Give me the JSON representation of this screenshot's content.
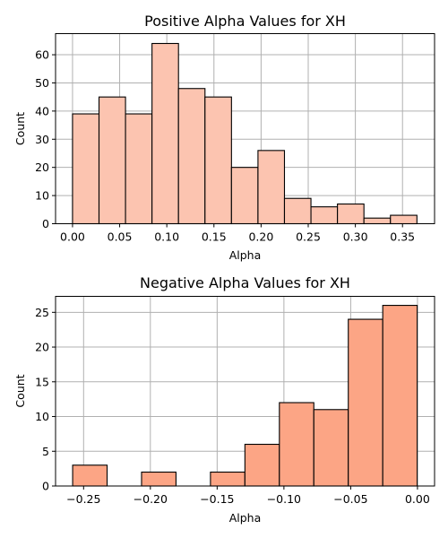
{
  "chart_data": [
    {
      "type": "bar",
      "title": "Positive Alpha Values for XH",
      "xlabel": "Alpha",
      "ylabel": "Count",
      "xlim": [
        -0.018,
        0.384
      ],
      "ylim": [
        0,
        67.5
      ],
      "xticks": [
        0.0,
        0.05,
        0.1,
        0.15,
        0.2,
        0.25,
        0.3,
        0.35
      ],
      "xtick_labels": [
        "0.00",
        "0.05",
        "0.10",
        "0.15",
        "0.20",
        "0.25",
        "0.30",
        "0.35"
      ],
      "yticks": [
        0,
        10,
        20,
        30,
        40,
        50,
        60
      ],
      "ytick_labels": [
        "0",
        "10",
        "20",
        "30",
        "40",
        "50",
        "60"
      ],
      "grid": true,
      "bar_color": "#fcc4b0",
      "edge_color": "#000000",
      "bins": [
        {
          "start": 0.0,
          "end": 0.0281,
          "count": 39
        },
        {
          "start": 0.0281,
          "end": 0.0562,
          "count": 45
        },
        {
          "start": 0.0562,
          "end": 0.0843,
          "count": 39
        },
        {
          "start": 0.0843,
          "end": 0.1124,
          "count": 64
        },
        {
          "start": 0.1124,
          "end": 0.1405,
          "count": 48
        },
        {
          "start": 0.1405,
          "end": 0.1686,
          "count": 45
        },
        {
          "start": 0.1686,
          "end": 0.1967,
          "count": 20
        },
        {
          "start": 0.1967,
          "end": 0.2248,
          "count": 26
        },
        {
          "start": 0.2248,
          "end": 0.2529,
          "count": 9
        },
        {
          "start": 0.2529,
          "end": 0.281,
          "count": 6
        },
        {
          "start": 0.281,
          "end": 0.3091,
          "count": 7
        },
        {
          "start": 0.3091,
          "end": 0.3372,
          "count": 2
        },
        {
          "start": 0.3372,
          "end": 0.3653,
          "count": 3
        }
      ]
    },
    {
      "type": "bar",
      "title": "Negative Alpha Values for XH",
      "xlabel": "Alpha",
      "ylabel": "Count",
      "xlim": [
        -0.271,
        0.0128
      ],
      "ylim": [
        0,
        27.3
      ],
      "xticks": [
        -0.25,
        -0.2,
        -0.15,
        -0.1,
        -0.05,
        0.0
      ],
      "xtick_labels": [
        "−0.25",
        "−0.20",
        "−0.15",
        "−0.10",
        "−0.05",
        "0.00"
      ],
      "yticks": [
        0,
        5,
        10,
        15,
        20,
        25
      ],
      "ytick_labels": [
        "0",
        "5",
        "10",
        "15",
        "20",
        "25"
      ],
      "grid": true,
      "bar_color": "#fca585",
      "edge_color": "#000000",
      "bins": [
        {
          "start": -0.2582,
          "end": -0.2324,
          "count": 3
        },
        {
          "start": -0.2324,
          "end": -0.2066,
          "count": 0
        },
        {
          "start": -0.2066,
          "end": -0.1808,
          "count": 2
        },
        {
          "start": -0.1808,
          "end": -0.155,
          "count": 0
        },
        {
          "start": -0.155,
          "end": -0.1292,
          "count": 2
        },
        {
          "start": -0.1292,
          "end": -0.1034,
          "count": 6
        },
        {
          "start": -0.1034,
          "end": -0.0776,
          "count": 12
        },
        {
          "start": -0.0776,
          "end": -0.0518,
          "count": 11
        },
        {
          "start": -0.0518,
          "end": -0.026,
          "count": 24
        },
        {
          "start": -0.026,
          "end": -0.0002,
          "count": 26
        }
      ]
    }
  ]
}
